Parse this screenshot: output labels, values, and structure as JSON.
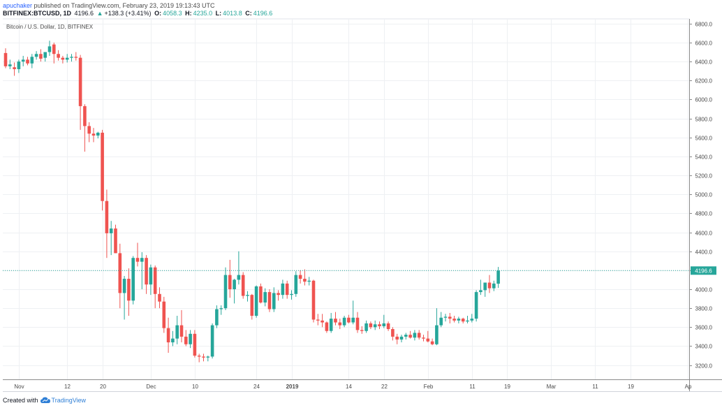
{
  "header": {
    "author": "apuchaker",
    "published_text": "published on TradingView.com, February 23, 2019 19:13:43 UTC",
    "symbol": "BITFINEX:BTCUSD, 1D",
    "last": "4196.6",
    "change_arrow": "▲",
    "change": "+138.3 (+3.41%)",
    "o_label": "O:",
    "o_value": "4058.3",
    "h_label": "H:",
    "h_value": "4235.0",
    "l_label": "L:",
    "l_value": "4013.8",
    "c_label": "C:",
    "c_value": "4196.6"
  },
  "footer": {
    "created_with": "Created with",
    "brand": "TradingView"
  },
  "colors": {
    "up": "#26a69a",
    "down": "#ef5350",
    "grid": "#eef0f3",
    "price_line": "#26a69a"
  },
  "chart_data": {
    "type": "candlestick",
    "title": "Bitcoin / U.S. Dollar, 1D, BITFINEX",
    "ylim": [
      3050,
      6850
    ],
    "y_ticks": [
      3200,
      3400,
      3600,
      3800,
      4000,
      4200,
      4400,
      4600,
      4800,
      5000,
      5200,
      5400,
      5600,
      5800,
      6000,
      6200,
      6400,
      6600,
      6800
    ],
    "x_ticks": [
      {
        "label": "Nov",
        "index": 3
      },
      {
        "label": "12",
        "index": 14
      },
      {
        "label": "20",
        "index": 22
      },
      {
        "label": "Dec",
        "index": 33
      },
      {
        "label": "10",
        "index": 43
      },
      {
        "label": "24",
        "index": 57
      },
      {
        "label": "2019",
        "index": 65
      },
      {
        "label": "14",
        "index": 78
      },
      {
        "label": "22",
        "index": 86
      },
      {
        "label": "Feb",
        "index": 96
      },
      {
        "label": "11",
        "index": 106
      },
      {
        "label": "19",
        "index": 114
      },
      {
        "label": "Mar",
        "index": 124
      },
      {
        "label": "11",
        "index": 134
      },
      {
        "label": "19",
        "index": 142
      },
      {
        "label": "Ap",
        "index": 155
      }
    ],
    "last_price": 4196.6,
    "last_price_label": "4196.6",
    "candles": [
      {
        "o": 6490,
        "h": 6540,
        "l": 6330,
        "c": 6350
      },
      {
        "o": 6350,
        "h": 6420,
        "l": 6320,
        "c": 6370
      },
      {
        "o": 6340,
        "h": 6390,
        "l": 6250,
        "c": 6320
      },
      {
        "o": 6320,
        "h": 6420,
        "l": 6280,
        "c": 6400
      },
      {
        "o": 6400,
        "h": 6460,
        "l": 6350,
        "c": 6420
      },
      {
        "o": 6420,
        "h": 6450,
        "l": 6360,
        "c": 6380
      },
      {
        "o": 6380,
        "h": 6480,
        "l": 6330,
        "c": 6450
      },
      {
        "o": 6450,
        "h": 6510,
        "l": 6420,
        "c": 6480
      },
      {
        "o": 6480,
        "h": 6530,
        "l": 6400,
        "c": 6430
      },
      {
        "o": 6440,
        "h": 6500,
        "l": 6400,
        "c": 6500
      },
      {
        "o": 6500,
        "h": 6620,
        "l": 6460,
        "c": 6560
      },
      {
        "o": 6580,
        "h": 6600,
        "l": 6380,
        "c": 6480
      },
      {
        "o": 6480,
        "h": 6520,
        "l": 6410,
        "c": 6440
      },
      {
        "o": 6440,
        "h": 6460,
        "l": 6380,
        "c": 6420
      },
      {
        "o": 6420,
        "h": 6480,
        "l": 6390,
        "c": 6440
      },
      {
        "o": 6440,
        "h": 6480,
        "l": 6400,
        "c": 6450
      },
      {
        "o": 6450,
        "h": 6500,
        "l": 6410,
        "c": 6440
      },
      {
        "o": 6440,
        "h": 6470,
        "l": 5680,
        "c": 5930
      },
      {
        "o": 5930,
        "h": 5950,
        "l": 5450,
        "c": 5720
      },
      {
        "o": 5720,
        "h": 5760,
        "l": 5550,
        "c": 5640
      },
      {
        "o": 5640,
        "h": 5700,
        "l": 5550,
        "c": 5620
      },
      {
        "o": 5620,
        "h": 5660,
        "l": 5590,
        "c": 5650
      },
      {
        "o": 5650,
        "h": 5680,
        "l": 4830,
        "c": 4930
      },
      {
        "o": 4930,
        "h": 5050,
        "l": 4330,
        "c": 4590
      },
      {
        "o": 4590,
        "h": 4720,
        "l": 4360,
        "c": 4640
      },
      {
        "o": 4640,
        "h": 4680,
        "l": 4380,
        "c": 4380
      },
      {
        "o": 4380,
        "h": 4480,
        "l": 3800,
        "c": 3960
      },
      {
        "o": 3960,
        "h": 4140,
        "l": 3680,
        "c": 4110
      },
      {
        "o": 4110,
        "h": 4220,
        "l": 3720,
        "c": 3880
      },
      {
        "o": 3880,
        "h": 4350,
        "l": 3840,
        "c": 4330
      },
      {
        "o": 4330,
        "h": 4490,
        "l": 4240,
        "c": 4290
      },
      {
        "o": 4290,
        "h": 4390,
        "l": 4000,
        "c": 4330
      },
      {
        "o": 4330,
        "h": 4360,
        "l": 3950,
        "c": 4050
      },
      {
        "o": 4050,
        "h": 4260,
        "l": 3940,
        "c": 4230
      },
      {
        "o": 4230,
        "h": 4250,
        "l": 3800,
        "c": 3950
      },
      {
        "o": 3950,
        "h": 4020,
        "l": 3800,
        "c": 3870
      },
      {
        "o": 3870,
        "h": 3920,
        "l": 3540,
        "c": 3590
      },
      {
        "o": 3590,
        "h": 3700,
        "l": 3330,
        "c": 3440
      },
      {
        "o": 3440,
        "h": 3560,
        "l": 3400,
        "c": 3480
      },
      {
        "o": 3480,
        "h": 3720,
        "l": 3420,
        "c": 3620
      },
      {
        "o": 3620,
        "h": 3780,
        "l": 3440,
        "c": 3500
      },
      {
        "o": 3500,
        "h": 3570,
        "l": 3400,
        "c": 3420
      },
      {
        "o": 3420,
        "h": 3570,
        "l": 3380,
        "c": 3530
      },
      {
        "o": 3530,
        "h": 3570,
        "l": 3280,
        "c": 3300
      },
      {
        "o": 3300,
        "h": 3320,
        "l": 3230,
        "c": 3290
      },
      {
        "o": 3290,
        "h": 3320,
        "l": 3240,
        "c": 3280
      },
      {
        "o": 3280,
        "h": 3300,
        "l": 3240,
        "c": 3290
      },
      {
        "o": 3290,
        "h": 3640,
        "l": 3270,
        "c": 3620
      },
      {
        "o": 3620,
        "h": 3830,
        "l": 3590,
        "c": 3790
      },
      {
        "o": 3790,
        "h": 3830,
        "l": 3730,
        "c": 3800
      },
      {
        "o": 3800,
        "h": 4230,
        "l": 3780,
        "c": 4150
      },
      {
        "o": 4150,
        "h": 4310,
        "l": 3910,
        "c": 4000
      },
      {
        "o": 4000,
        "h": 4110,
        "l": 3850,
        "c": 4100
      },
      {
        "o": 4100,
        "h": 4400,
        "l": 4050,
        "c": 4150
      },
      {
        "o": 4150,
        "h": 4180,
        "l": 3900,
        "c": 3930
      },
      {
        "o": 3930,
        "h": 3980,
        "l": 3870,
        "c": 3940
      },
      {
        "o": 3940,
        "h": 3950,
        "l": 3680,
        "c": 3720
      },
      {
        "o": 3720,
        "h": 4040,
        "l": 3700,
        "c": 4030
      },
      {
        "o": 4030,
        "h": 4060,
        "l": 3850,
        "c": 3860
      },
      {
        "o": 3860,
        "h": 4010,
        "l": 3820,
        "c": 3970
      },
      {
        "o": 3970,
        "h": 4000,
        "l": 3760,
        "c": 3790
      },
      {
        "o": 3790,
        "h": 4020,
        "l": 3760,
        "c": 3960
      },
      {
        "o": 3960,
        "h": 3990,
        "l": 3880,
        "c": 3940
      },
      {
        "o": 3940,
        "h": 4100,
        "l": 3900,
        "c": 4060
      },
      {
        "o": 4060,
        "h": 4090,
        "l": 3900,
        "c": 3940
      },
      {
        "o": 3940,
        "h": 3990,
        "l": 3890,
        "c": 3950
      },
      {
        "o": 3950,
        "h": 4190,
        "l": 3920,
        "c": 4150
      },
      {
        "o": 4150,
        "h": 4200,
        "l": 4060,
        "c": 4110
      },
      {
        "o": 4110,
        "h": 4210,
        "l": 4040,
        "c": 4080
      },
      {
        "o": 4080,
        "h": 4130,
        "l": 4040,
        "c": 4090
      },
      {
        "o": 4090,
        "h": 4100,
        "l": 3650,
        "c": 3680
      },
      {
        "o": 3680,
        "h": 3740,
        "l": 3620,
        "c": 3670
      },
      {
        "o": 3670,
        "h": 3740,
        "l": 3600,
        "c": 3650
      },
      {
        "o": 3650,
        "h": 3660,
        "l": 3540,
        "c": 3560
      },
      {
        "o": 3560,
        "h": 3750,
        "l": 3540,
        "c": 3690
      },
      {
        "o": 3690,
        "h": 3760,
        "l": 3620,
        "c": 3650
      },
      {
        "o": 3650,
        "h": 3690,
        "l": 3580,
        "c": 3620
      },
      {
        "o": 3620,
        "h": 3720,
        "l": 3600,
        "c": 3700
      },
      {
        "o": 3700,
        "h": 3730,
        "l": 3640,
        "c": 3650
      },
      {
        "o": 3650,
        "h": 3880,
        "l": 3630,
        "c": 3700
      },
      {
        "o": 3700,
        "h": 3760,
        "l": 3540,
        "c": 3570
      },
      {
        "o": 3570,
        "h": 3610,
        "l": 3530,
        "c": 3560
      },
      {
        "o": 3560,
        "h": 3670,
        "l": 3540,
        "c": 3640
      },
      {
        "o": 3640,
        "h": 3660,
        "l": 3580,
        "c": 3600
      },
      {
        "o": 3600,
        "h": 3670,
        "l": 3570,
        "c": 3630
      },
      {
        "o": 3630,
        "h": 3660,
        "l": 3580,
        "c": 3610
      },
      {
        "o": 3610,
        "h": 3730,
        "l": 3590,
        "c": 3640
      },
      {
        "o": 3640,
        "h": 3660,
        "l": 3560,
        "c": 3580
      },
      {
        "o": 3580,
        "h": 3600,
        "l": 3460,
        "c": 3500
      },
      {
        "o": 3500,
        "h": 3530,
        "l": 3420,
        "c": 3470
      },
      {
        "o": 3470,
        "h": 3520,
        "l": 3440,
        "c": 3500
      },
      {
        "o": 3500,
        "h": 3540,
        "l": 3470,
        "c": 3520
      },
      {
        "o": 3520,
        "h": 3560,
        "l": 3480,
        "c": 3490
      },
      {
        "o": 3490,
        "h": 3570,
        "l": 3460,
        "c": 3540
      },
      {
        "o": 3540,
        "h": 3570,
        "l": 3470,
        "c": 3490
      },
      {
        "o": 3490,
        "h": 3520,
        "l": 3450,
        "c": 3480
      },
      {
        "o": 3480,
        "h": 3560,
        "l": 3440,
        "c": 3450
      },
      {
        "o": 3450,
        "h": 3480,
        "l": 3410,
        "c": 3420
      },
      {
        "o": 3420,
        "h": 3800,
        "l": 3410,
        "c": 3620
      },
      {
        "o": 3620,
        "h": 3760,
        "l": 3600,
        "c": 3700
      },
      {
        "o": 3700,
        "h": 3740,
        "l": 3660,
        "c": 3710
      },
      {
        "o": 3710,
        "h": 3750,
        "l": 3640,
        "c": 3690
      },
      {
        "o": 3690,
        "h": 3720,
        "l": 3650,
        "c": 3670
      },
      {
        "o": 3670,
        "h": 3710,
        "l": 3640,
        "c": 3690
      },
      {
        "o": 3690,
        "h": 3700,
        "l": 3640,
        "c": 3660
      },
      {
        "o": 3660,
        "h": 3720,
        "l": 3640,
        "c": 3670
      },
      {
        "o": 3670,
        "h": 3740,
        "l": 3650,
        "c": 3690
      },
      {
        "o": 3690,
        "h": 3990,
        "l": 3660,
        "c": 3970
      },
      {
        "o": 3970,
        "h": 4100,
        "l": 3940,
        "c": 3990
      },
      {
        "o": 3990,
        "h": 4070,
        "l": 3920,
        "c": 4070
      },
      {
        "o": 4070,
        "h": 4150,
        "l": 3960,
        "c": 4010
      },
      {
        "o": 4010,
        "h": 4090,
        "l": 3980,
        "c": 4060
      },
      {
        "o": 4058.3,
        "h": 4235.0,
        "l": 4013.8,
        "c": 4196.6
      }
    ]
  }
}
